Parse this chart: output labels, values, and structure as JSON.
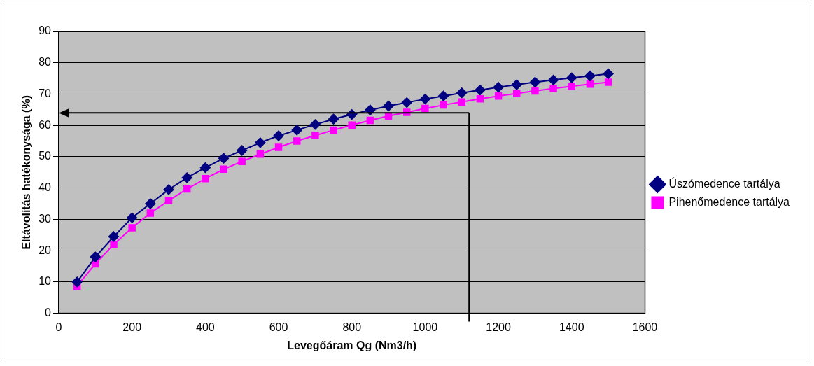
{
  "chart_data": {
    "type": "line",
    "xlabel": "Levegőáram Qg (Nm3/h)",
    "ylabel": "Eltávolítás hatékonysága (%)",
    "x": [
      50,
      100,
      150,
      200,
      250,
      300,
      350,
      400,
      450,
      500,
      550,
      600,
      650,
      700,
      750,
      800,
      850,
      900,
      950,
      1000,
      1050,
      1100,
      1150,
      1200,
      1250,
      1300,
      1350,
      1400,
      1450,
      1500
    ],
    "series": [
      {
        "name": "Úszómedence tartálya",
        "color": "#000080",
        "marker": "diamond",
        "values": [
          10,
          18,
          24.5,
          30.5,
          35,
          39.5,
          43.3,
          46.5,
          49.5,
          52,
          54.5,
          56.7,
          58.5,
          60.3,
          62,
          63.5,
          64.9,
          66.2,
          67.3,
          68.4,
          69.4,
          70.4,
          71.3,
          72.2,
          73,
          73.8,
          74.5,
          75.2,
          75.8,
          76.5
        ]
      },
      {
        "name": "Pihenőmedence tartálya",
        "color": "#ff00ff",
        "marker": "square",
        "values": [
          8.7,
          15.8,
          22,
          27.3,
          32,
          36,
          39.7,
          43,
          46,
          48.5,
          50.8,
          53,
          55,
          56.8,
          58.5,
          60.1,
          61.6,
          63,
          64.2,
          65.4,
          66.5,
          67.5,
          68.5,
          69.4,
          70.2,
          71,
          71.8,
          72.5,
          73.2,
          73.8
        ]
      }
    ],
    "xlim": [
      0,
      1600
    ],
    "xticks": [
      0,
      200,
      400,
      600,
      800,
      1000,
      1200,
      1400,
      1600
    ],
    "ylim": [
      0,
      90
    ],
    "yticks": [
      0,
      10,
      20,
      30,
      40,
      50,
      60,
      70,
      80,
      90
    ],
    "ref_lines": [
      {
        "axis": "x",
        "value": 1120,
        "color": "#000000"
      },
      {
        "axis": "y",
        "value": 64,
        "color": "#000000"
      }
    ],
    "grid": "y",
    "legend": "right"
  }
}
